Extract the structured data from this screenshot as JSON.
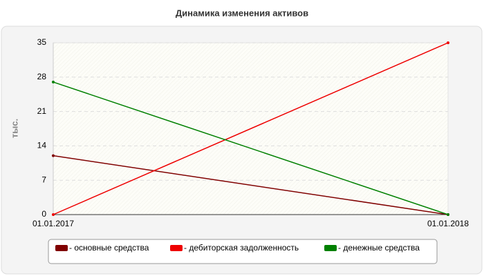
{
  "chart_data": {
    "type": "line",
    "title": "Динамика изменения активов",
    "y_label": "тыс.",
    "categories": [
      "01.01.2017",
      "01.01.2018"
    ],
    "series": [
      {
        "name": "- основные средства",
        "color": "#800000",
        "values": [
          12,
          0
        ]
      },
      {
        "name": "- дебиторская задолженность",
        "color": "#ee0000",
        "values": [
          0,
          35
        ]
      },
      {
        "name": "- денежные средства",
        "color": "#008000",
        "values": [
          27,
          0
        ]
      }
    ],
    "ylim": [
      0,
      35
    ],
    "yticks": [
      0,
      7,
      14,
      21,
      28,
      35
    ],
    "grid": true
  }
}
